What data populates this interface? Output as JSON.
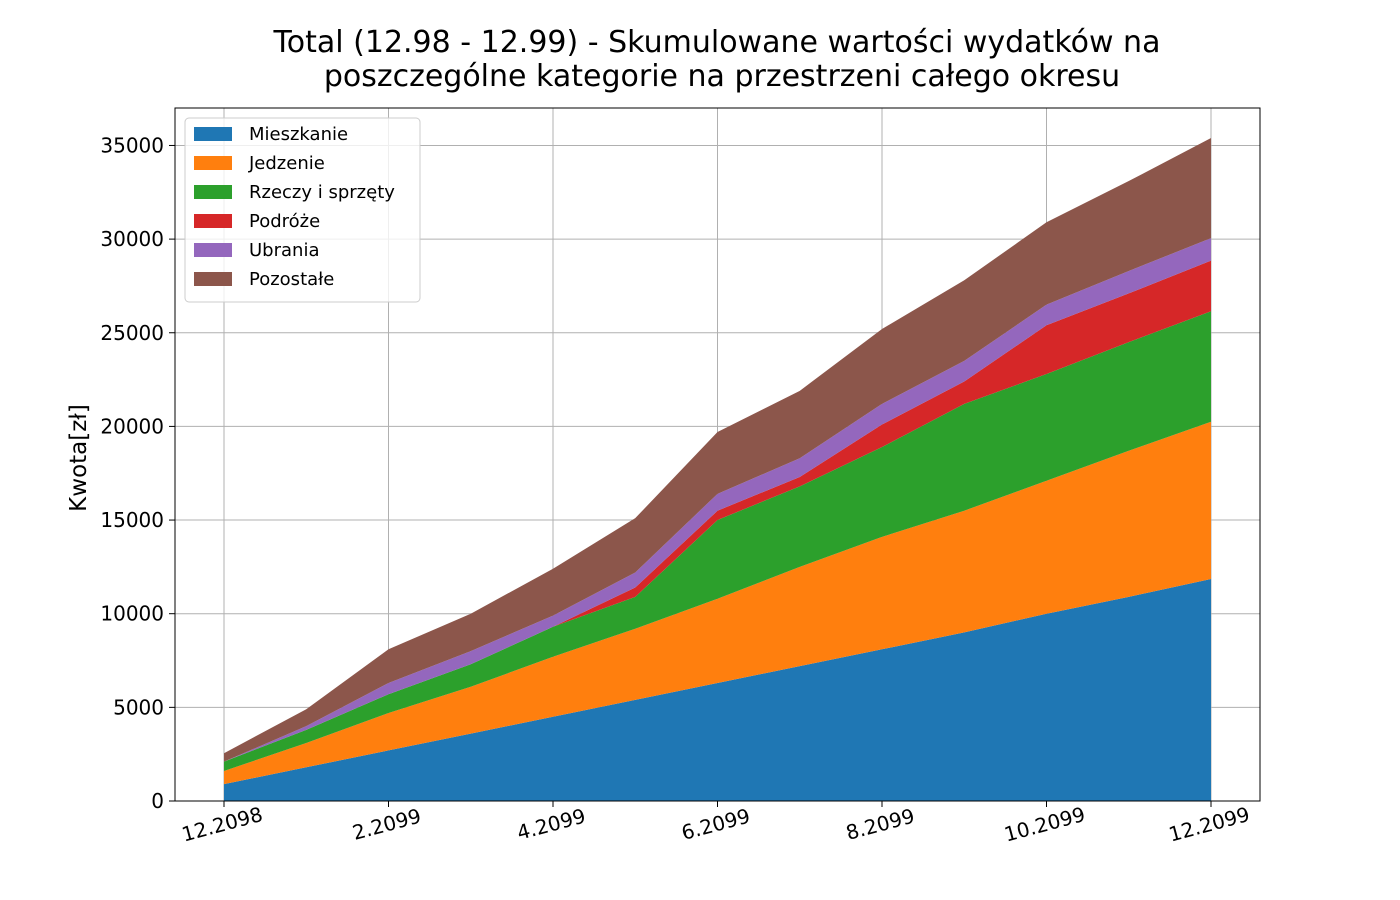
{
  "chart_data": {
    "type": "area",
    "stacked": true,
    "title_line1": "Total (12.98 - 12.99) - Skumulowane wartości wydatków na",
    "title_line2": "poszczególne kategorie na przestrzeni całego okresu",
    "ylabel": "Kwota[zł]",
    "xlabel": "",
    "x": [
      "12.2098",
      "1.2099",
      "2.2099",
      "3.2099",
      "4.2099",
      "5.2099",
      "6.2099",
      "7.2099",
      "8.2099",
      "9.2099",
      "10.2099",
      "11.2099",
      "12.2099"
    ],
    "xticks": [
      "12.2098",
      "2.2099",
      "4.2099",
      "6.2099",
      "8.2099",
      "10.2099",
      "12.2099"
    ],
    "ylim": [
      0,
      37000
    ],
    "yticks": [
      0,
      5000,
      10000,
      15000,
      20000,
      25000,
      30000,
      35000
    ],
    "grid": true,
    "legend_position": "upper-left",
    "series": [
      {
        "name": "Mieszkanie",
        "color": "#1f77b4",
        "values": [
          900,
          1800,
          2700,
          3600,
          4500,
          5400,
          6300,
          7200,
          8100,
          9000,
          10000,
          10900,
          11850
        ]
      },
      {
        "name": "Jedzenie",
        "color": "#ff7f0e",
        "values": [
          700,
          1300,
          2000,
          2500,
          3200,
          3800,
          4500,
          5300,
          6000,
          6500,
          7100,
          7800,
          8400
        ]
      },
      {
        "name": "Rzeczy i sprzęty",
        "color": "#2ca02c",
        "values": [
          500,
          700,
          1000,
          1200,
          1600,
          1700,
          4200,
          4300,
          4800,
          5700,
          5700,
          5800,
          5900
        ]
      },
      {
        "name": "Podróże",
        "color": "#d62728",
        "values": [
          0,
          0,
          0,
          0,
          0,
          500,
          500,
          500,
          1200,
          1200,
          2600,
          2600,
          2700
        ]
      },
      {
        "name": "Ubrania",
        "color": "#9467bd",
        "values": [
          0,
          200,
          600,
          700,
          600,
          800,
          900,
          1000,
          1100,
          1100,
          1100,
          1200,
          1200
        ]
      },
      {
        "name": "Pozostałe",
        "color": "#8c564b",
        "values": [
          450,
          900,
          1800,
          2000,
          2500,
          2900,
          3300,
          3600,
          4000,
          4300,
          4400,
          4800,
          5350
        ]
      }
    ]
  }
}
